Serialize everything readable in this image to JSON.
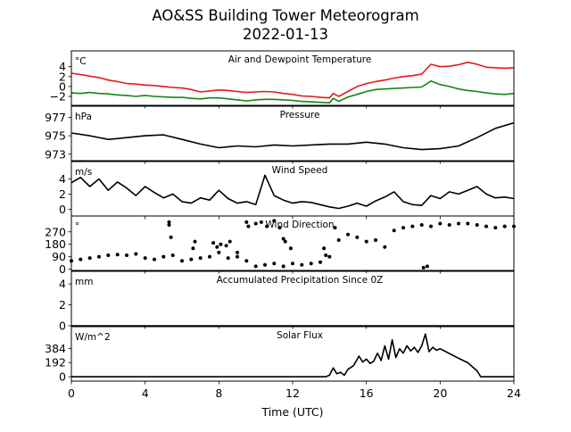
{
  "figure": {
    "title": "AO&SS Building Tower Meteorogram",
    "subtitle": "2022-01-13",
    "xlabel": "Time (UTC)"
  },
  "colors": {
    "air_temperature": "#e41a1c",
    "dewpoint": "#138613",
    "default": "#000000"
  },
  "chart_data": [
    {
      "type": "line",
      "title": "Air and Dewpoint Temperature",
      "ylabel": "°C",
      "xlim": [
        0,
        24
      ],
      "ylim": [
        -3.8,
        7.2
      ],
      "yticks": [
        -4,
        -2,
        0,
        2,
        4
      ],
      "yticklabels": [
        "",
        "−2",
        "0",
        "2",
        "4"
      ],
      "xticks": [
        0,
        4,
        8,
        12,
        16,
        20,
        24
      ],
      "series": [
        {
          "key": "air",
          "color": "#e41a1c",
          "x": [
            0,
            0.5,
            1,
            1.5,
            2,
            2.5,
            3,
            3.5,
            4,
            4.5,
            5,
            5.5,
            6,
            6.5,
            7,
            7.5,
            8,
            8.5,
            9,
            9.5,
            10,
            10.5,
            11,
            11.5,
            12,
            12.5,
            13,
            13.5,
            14,
            14.2,
            14.5,
            15,
            15.5,
            16,
            16.5,
            17,
            17.5,
            18,
            18.5,
            19,
            19.5,
            20,
            20.5,
            21,
            21.5,
            22,
            22.5,
            23,
            23.5,
            24
          ],
          "y": [
            2.7,
            2.4,
            2.1,
            1.8,
            1.3,
            1.0,
            0.6,
            0.5,
            0.3,
            0.2,
            0.0,
            -0.2,
            -0.3,
            -0.6,
            -1.1,
            -0.9,
            -0.7,
            -0.8,
            -1.0,
            -1.2,
            -1.1,
            -1.0,
            -1.1,
            -1.4,
            -1.6,
            -1.9,
            -2.0,
            -2.2,
            -2.3,
            -1.4,
            -2.0,
            -1.0,
            0.0,
            0.6,
            1.0,
            1.3,
            1.7,
            2.0,
            2.2,
            2.5,
            4.5,
            4.0,
            4.1,
            4.4,
            4.9,
            4.5,
            3.9,
            3.8,
            3.7,
            3.8
          ]
        },
        {
          "key": "dew",
          "color": "#138613",
          "x": [
            0,
            0.5,
            1,
            1.5,
            2,
            2.5,
            3,
            3.5,
            4,
            4.5,
            5,
            5.5,
            6,
            6.5,
            7,
            7.5,
            8,
            8.5,
            9,
            9.5,
            10,
            10.5,
            11,
            11.5,
            12,
            12.5,
            13,
            13.5,
            14,
            14.2,
            14.5,
            15,
            15.5,
            16,
            16.5,
            17,
            17.5,
            18,
            18.5,
            19,
            19.5,
            20,
            20.5,
            21,
            21.5,
            22,
            22.5,
            23,
            23.5,
            24
          ],
          "y": [
            -1.3,
            -1.4,
            -1.2,
            -1.4,
            -1.5,
            -1.7,
            -1.8,
            -2.0,
            -1.8,
            -2.0,
            -2.1,
            -2.2,
            -2.2,
            -2.4,
            -2.5,
            -2.3,
            -2.3,
            -2.5,
            -2.7,
            -2.9,
            -2.7,
            -2.6,
            -2.6,
            -2.7,
            -2.8,
            -3.0,
            -3.1,
            -3.2,
            -3.3,
            -2.4,
            -3.0,
            -2.1,
            -1.6,
            -1.0,
            -0.6,
            -0.5,
            -0.4,
            -0.3,
            -0.2,
            -0.1,
            1.1,
            0.4,
            0.0,
            -0.5,
            -0.8,
            -1.0,
            -1.3,
            -1.5,
            -1.6,
            -1.4
          ]
        }
      ]
    },
    {
      "type": "line",
      "title": "Pressure",
      "ylabel": "hPa",
      "xlim": [
        0,
        24
      ],
      "ylim": [
        972.3,
        978.2
      ],
      "yticks": [
        973,
        975,
        977
      ],
      "yticklabels": [
        "973",
        "975",
        "977"
      ],
      "series": [
        {
          "key": "pressure",
          "color": "#000000",
          "x": [
            0,
            1,
            2,
            3,
            4,
            5,
            6,
            7,
            8,
            9,
            10,
            11,
            12,
            13,
            14,
            15,
            16,
            17,
            18,
            19,
            20,
            21,
            22,
            23,
            24
          ],
          "y": [
            975.3,
            975.0,
            974.6,
            974.8,
            975.0,
            975.1,
            974.6,
            974.1,
            973.7,
            973.9,
            973.8,
            974.0,
            973.9,
            974.0,
            974.1,
            974.1,
            974.3,
            974.1,
            973.7,
            973.5,
            973.6,
            973.9,
            974.8,
            975.8,
            976.4
          ]
        }
      ]
    },
    {
      "type": "line",
      "title": "Wind Speed",
      "ylabel": "m/s",
      "xlim": [
        0,
        24
      ],
      "ylim": [
        -0.9,
        6.3
      ],
      "yticks": [
        0,
        2,
        4
      ],
      "yticklabels": [
        "0",
        "2",
        "4"
      ],
      "series": [
        {
          "key": "wind_speed",
          "color": "#000000",
          "x": [
            0,
            0.5,
            1,
            1.5,
            2,
            2.5,
            3,
            3.5,
            4,
            4.5,
            5,
            5.5,
            6,
            6.5,
            7,
            7.5,
            8,
            8.5,
            9,
            9.5,
            10,
            10.5,
            11,
            11.5,
            12,
            12.5,
            13,
            13.5,
            14,
            14.5,
            15,
            15.5,
            16,
            16.5,
            17,
            17.5,
            18,
            18.5,
            19,
            19.5,
            20,
            20.5,
            21,
            21.5,
            22,
            22.5,
            23,
            23.5,
            24
          ],
          "y": [
            3.5,
            4.2,
            3.0,
            4.0,
            2.5,
            3.6,
            2.8,
            1.8,
            3.0,
            2.2,
            1.5,
            2.0,
            1.0,
            0.8,
            1.5,
            1.2,
            2.5,
            1.4,
            0.8,
            1.0,
            0.6,
            4.5,
            1.8,
            1.2,
            0.8,
            1.0,
            0.9,
            0.6,
            0.3,
            0.1,
            0.4,
            0.8,
            0.4,
            1.1,
            1.6,
            2.3,
            1.0,
            0.6,
            0.5,
            1.8,
            1.4,
            2.3,
            2.0,
            2.5,
            3.0,
            2.0,
            1.5,
            1.6,
            1.4
          ]
        }
      ]
    },
    {
      "type": "scatter",
      "title": "Wind Direction",
      "ylabel": "°",
      "xlim": [
        0,
        24
      ],
      "ylim": [
        -10,
        385
      ],
      "yticks": [
        0,
        90,
        180,
        270
      ],
      "yticklabels": [
        "0",
        "90",
        "180",
        "270"
      ],
      "series": [
        {
          "key": "wind_dir_main",
          "color": "#000000",
          "x": [
            0,
            0.5,
            1,
            1.5,
            2,
            2.5,
            3,
            3.5,
            4,
            4.5,
            5,
            5.5,
            6,
            6.5,
            7,
            7.5,
            8,
            8.5,
            9,
            9.5,
            10,
            10.5,
            11,
            11.5,
            12,
            12.5,
            13,
            13.5,
            14,
            14.5,
            15,
            15.5,
            16,
            16.5,
            17,
            17.5,
            18,
            18.5,
            19,
            19.5,
            20,
            20.5,
            21,
            21.5,
            22,
            22.5,
            23,
            23.5,
            24
          ],
          "y": [
            60,
            70,
            80,
            90,
            100,
            105,
            100,
            110,
            80,
            70,
            90,
            100,
            60,
            70,
            80,
            90,
            120,
            80,
            90,
            60,
            20,
            30,
            40,
            20,
            40,
            30,
            40,
            50,
            90,
            210,
            250,
            230,
            200,
            210,
            160,
            280,
            300,
            310,
            320,
            310,
            330,
            320,
            330,
            330,
            320,
            310,
            300,
            310,
            310
          ]
        },
        {
          "key": "wind_dir_outliers",
          "color": "#000000",
          "x": [
            5.3,
            5.3,
            5.4,
            6.6,
            6.7,
            7.7,
            7.9,
            8.1,
            8.4,
            8.6,
            9.0,
            9.5,
            9.6,
            10.0,
            10.3,
            10.6,
            11.0,
            11.3,
            11.5,
            11.6,
            11.9,
            13.7,
            13.8,
            14.3,
            19.1,
            19.3
          ],
          "y": [
            340,
            320,
            230,
            150,
            200,
            190,
            160,
            180,
            170,
            200,
            120,
            340,
            310,
            330,
            340,
            310,
            350,
            300,
            220,
            200,
            150,
            150,
            100,
            300,
            10,
            20
          ]
        }
      ]
    },
    {
      "type": "line",
      "title": "Accumulated Precipitation Since 0Z",
      "ylabel": "mm",
      "xlim": [
        0,
        24
      ],
      "ylim": [
        0,
        5.2
      ],
      "yticks": [
        0,
        2,
        4
      ],
      "yticklabels": [
        "0",
        "2",
        "4"
      ],
      "series": [
        {
          "key": "precip",
          "color": "#000000",
          "x": [
            0,
            24
          ],
          "y": [
            0,
            0
          ]
        }
      ]
    },
    {
      "type": "line",
      "title": "Solar Flux",
      "ylabel": "W/m^2",
      "xlim": [
        0,
        24
      ],
      "ylim": [
        -60,
        680
      ],
      "yticks": [
        0,
        192,
        384
      ],
      "yticklabels": [
        "0",
        "192",
        "384"
      ],
      "xticks": [
        0,
        4,
        8,
        12,
        16,
        20,
        24
      ],
      "series": [
        {
          "key": "solar",
          "color": "#000000",
          "x": [
            0,
            13.8,
            14.0,
            14.2,
            14.4,
            14.6,
            14.8,
            15.0,
            15.3,
            15.6,
            15.8,
            16.0,
            16.2,
            16.4,
            16.6,
            16.8,
            17.0,
            17.2,
            17.4,
            17.6,
            17.8,
            18.0,
            18.2,
            18.4,
            18.6,
            18.8,
            19.0,
            19.2,
            19.4,
            19.6,
            19.8,
            20.0,
            21.0,
            21.5,
            22.0,
            22.2,
            24.0
          ],
          "y": [
            0,
            0,
            20,
            120,
            40,
            60,
            20,
            100,
            150,
            280,
            200,
            240,
            180,
            210,
            320,
            220,
            420,
            240,
            500,
            260,
            380,
            320,
            420,
            350,
            400,
            330,
            420,
            580,
            340,
            400,
            360,
            380,
            250,
            190,
            80,
            0,
            0
          ]
        }
      ]
    }
  ]
}
